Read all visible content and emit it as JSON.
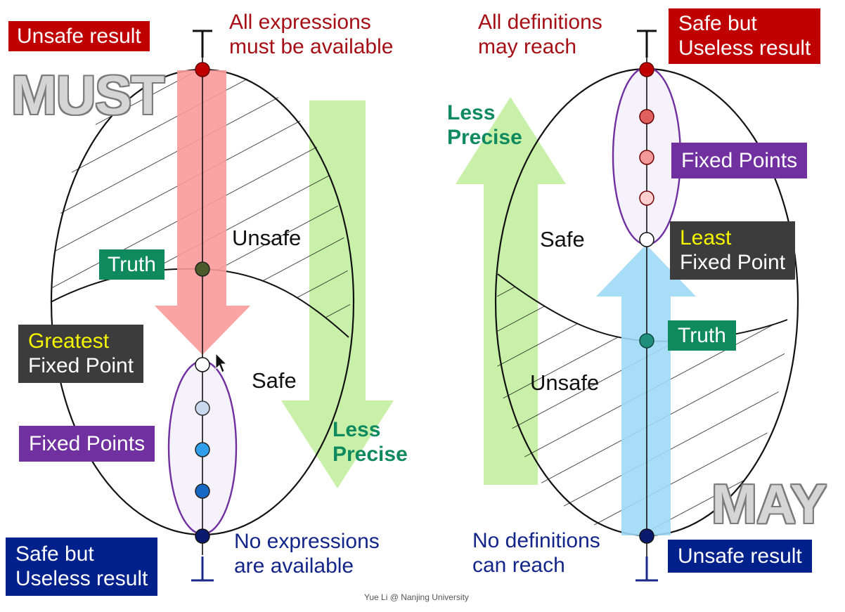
{
  "must": {
    "title": "MUST",
    "top_label": "Unsafe result",
    "top_note": [
      "All expressions",
      "must be available"
    ],
    "bottom_label": [
      "Safe but",
      "Useless result"
    ],
    "bottom_note": [
      "No expressions",
      "are available"
    ],
    "truth": "Truth",
    "greatest_fp": [
      "Greatest",
      "Fixed Point"
    ],
    "fixed_points": "Fixed Points",
    "region_unsafe": "Unsafe",
    "region_safe": "Safe",
    "less_precise": [
      "Less",
      "Precise"
    ],
    "top_symbol": "⊤",
    "bottom_symbol": "⊥"
  },
  "may": {
    "title": "MAY",
    "top_label": [
      "Safe but",
      "Useless result"
    ],
    "top_note": [
      "All definitions",
      "may reach"
    ],
    "bottom_label": "Unsafe result",
    "bottom_note": [
      "No definitions",
      "can reach"
    ],
    "truth": "Truth",
    "least_fp": [
      "Least",
      "Fixed Point"
    ],
    "fixed_points": "Fixed Points",
    "region_safe": "Safe",
    "region_unsafe": "Unsafe",
    "less_precise": [
      "Less",
      "Precise"
    ],
    "top_symbol": "⊤",
    "bottom_symbol": "⊥"
  },
  "footer": "Yue Li @ Nanjing University",
  "colors": {
    "red_box": "#c00000",
    "navy_box": "#00208c",
    "purple_box": "#7030a0",
    "green_box": "#0f8a5f",
    "dark_box": "#3c3c3c",
    "highlight_yellow": "#f5f500",
    "pink_arrow": "#f99a9a",
    "green_arrow": "#c8f0a8",
    "blue_arrow": "#9fd9f6"
  }
}
